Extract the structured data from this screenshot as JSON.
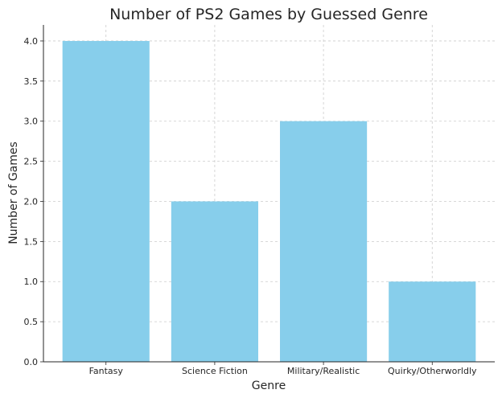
{
  "chart_data": {
    "type": "bar",
    "title": "Number of PS2 Games by Guessed Genre",
    "xlabel": "Genre",
    "ylabel": "Number of Games",
    "categories": [
      "Fantasy",
      "Science Fiction",
      "Military/Realistic",
      "Quirky/Otherworldly"
    ],
    "values": [
      4,
      2,
      3,
      1
    ],
    "ylim": [
      0,
      4.2
    ],
    "yticks": [
      "0.0",
      "0.5",
      "1.0",
      "1.5",
      "2.0",
      "2.5",
      "3.0",
      "3.5",
      "4.0"
    ],
    "grid": true,
    "bar_color": "#87ceeb",
    "grid_color": "#cccccc",
    "axis_color": "#262626"
  }
}
